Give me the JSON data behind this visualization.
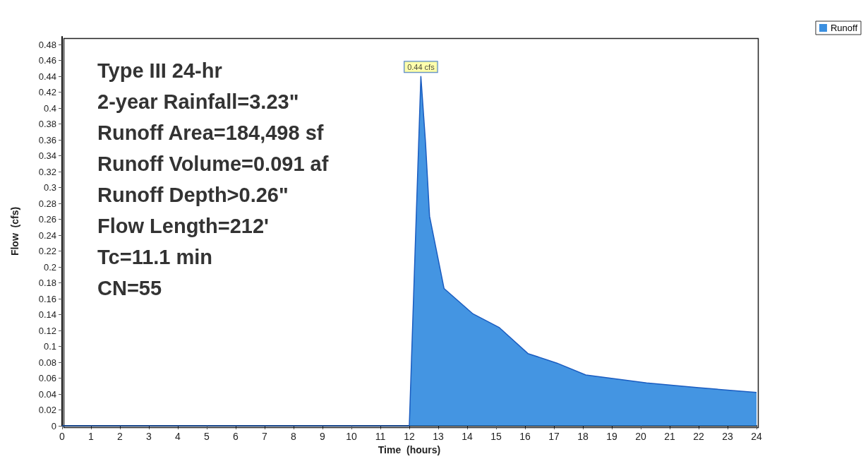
{
  "chart_data": {
    "type": "area",
    "xlabel": "Time  (hours)",
    "ylabel": "Flow  (cfs)",
    "series": [
      {
        "name": "Runoff",
        "color": "#3a8fe0",
        "x": [
          0,
          12.0,
          12.2,
          12.4,
          12.56,
          12.7,
          13.2,
          14.2,
          15.1,
          16.1,
          17.1,
          18.1,
          20.2,
          22,
          24
        ],
        "values": [
          0,
          0,
          0.22,
          0.44,
          0.357,
          0.264,
          0.173,
          0.141,
          0.124,
          0.091,
          0.079,
          0.064,
          0.054,
          0.048,
          0.042
        ]
      }
    ],
    "xlim": [
      0,
      24
    ],
    "xticks": [
      0,
      1,
      2,
      3,
      4,
      5,
      6,
      7,
      8,
      9,
      10,
      11,
      12,
      13,
      14,
      15,
      16,
      17,
      18,
      19,
      20,
      21,
      22,
      23,
      24
    ],
    "ylim": [
      0,
      0.49
    ],
    "yticks": [
      0,
      0.02,
      0.04,
      0.06,
      0.08,
      0.1,
      0.12,
      0.14,
      0.16,
      0.18,
      0.2,
      0.22,
      0.24,
      0.26,
      0.28,
      0.3,
      0.32,
      0.34,
      0.36,
      0.38,
      0.4,
      0.42,
      0.44,
      0.46,
      0.48
    ],
    "annotations": [
      "Type III 24-hr",
      "2-year Rainfall=3.23\"",
      "Runoff Area=184,498 sf",
      "Runoff Volume=0.091 af",
      "Runoff Depth>0.26\"",
      "Flow Length=212'",
      "Tc=11.1 min",
      "CN=55",
      {
        "text": "0.44 cfs",
        "x": 12.4,
        "y": 0.44
      }
    ],
    "grid": false,
    "legend": "top right",
    "marker": "none",
    "line_style": "solid"
  }
}
